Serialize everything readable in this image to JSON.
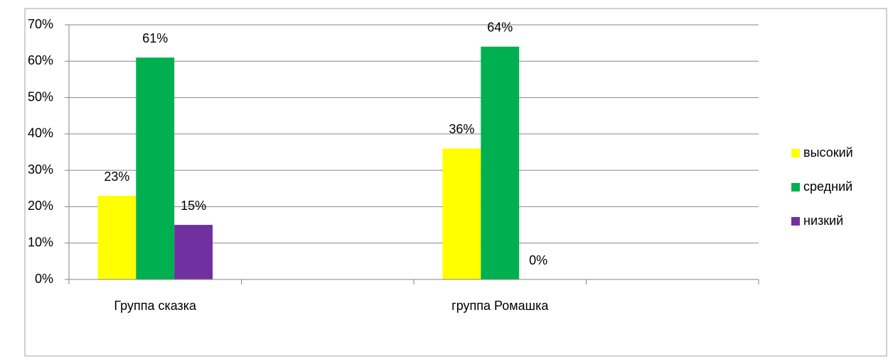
{
  "chart_data": {
    "type": "bar",
    "categories": [
      "Группа сказка",
      null,
      "группа Ромашка",
      null
    ],
    "series": [
      {
        "name": "высокий",
        "color": "#ffff00",
        "values": [
          23,
          null,
          36,
          null
        ],
        "value_labels": [
          "23%",
          null,
          "36%",
          null
        ]
      },
      {
        "name": "средний",
        "color": "#00b050",
        "values": [
          61,
          null,
          64,
          null
        ],
        "value_labels": [
          "61%",
          null,
          "64%",
          null
        ]
      },
      {
        "name": "низкий",
        "color": "#7030a0",
        "values": [
          15,
          null,
          0,
          null
        ],
        "value_labels": [
          "15%",
          null,
          "0%",
          null
        ]
      }
    ],
    "ylim": [
      0,
      70
    ],
    "yticks": [
      {
        "value": 0,
        "label": "0%"
      },
      {
        "value": 10,
        "label": "10%"
      },
      {
        "value": 20,
        "label": "20%"
      },
      {
        "value": 30,
        "label": "30%"
      },
      {
        "value": 40,
        "label": "40%"
      },
      {
        "value": 50,
        "label": "50%"
      },
      {
        "value": 60,
        "label": "60%"
      },
      {
        "value": 70,
        "label": "70%"
      }
    ],
    "grid": true,
    "legend": "right"
  }
}
